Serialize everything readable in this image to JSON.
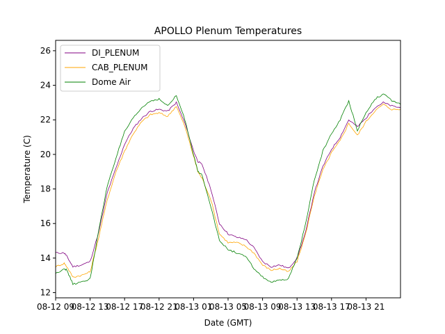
{
  "chart_data": {
    "type": "line",
    "title": "APOLLO Plenum Temperatures",
    "xlabel": "Date (GMT)",
    "ylabel": "Temperature (C)",
    "xlim": [
      0,
      40
    ],
    "ylim": [
      11.7,
      26.6
    ],
    "x_ticks": [
      {
        "x": 0,
        "label": "08-12 09"
      },
      {
        "x": 4,
        "label": "08-12 13"
      },
      {
        "x": 8,
        "label": "08-12 17"
      },
      {
        "x": 12,
        "label": "08-12 21"
      },
      {
        "x": 16,
        "label": "08-13 01"
      },
      {
        "x": 20,
        "label": "08-13 05"
      },
      {
        "x": 24,
        "label": "08-13 09"
      },
      {
        "x": 28,
        "label": "08-13 13"
      },
      {
        "x": 32,
        "label": "08-13 17"
      },
      {
        "x": 36,
        "label": "08-13 21"
      }
    ],
    "y_ticks": [
      12,
      14,
      16,
      18,
      20,
      22,
      24,
      26
    ],
    "legend_position": "top-left",
    "series": [
      {
        "name": "DI_PLENUM",
        "color": "#800080",
        "x": [
          0,
          1,
          1.3,
          2,
          3,
          4,
          5,
          6,
          7,
          8,
          9,
          10,
          11,
          12,
          13,
          14,
          15,
          16,
          16.5,
          17,
          18,
          19,
          20,
          21,
          22,
          23,
          24,
          25,
          26,
          27,
          28,
          29,
          30,
          31,
          32,
          33,
          34,
          35,
          36,
          37,
          38,
          39,
          40
        ],
        "y": [
          14.3,
          14.3,
          14.1,
          13.5,
          13.6,
          13.8,
          15.5,
          17.8,
          19.2,
          20.6,
          21.5,
          22.1,
          22.5,
          22.6,
          22.5,
          23.0,
          21.8,
          20.2,
          19.6,
          19.4,
          18.0,
          16.0,
          15.4,
          15.2,
          15.1,
          14.6,
          13.8,
          13.5,
          13.6,
          13.4,
          14.0,
          15.5,
          17.8,
          19.3,
          20.3,
          21.0,
          22.0,
          21.6,
          22.1,
          22.7,
          23.0,
          22.8,
          22.7
        ]
      },
      {
        "name": "CAB_PLENUM",
        "color": "#FFA500",
        "x": [
          0,
          1,
          1.3,
          2,
          3,
          4,
          5,
          6,
          7,
          8,
          9,
          10,
          11,
          12,
          13,
          14,
          15,
          16,
          16.5,
          17,
          18,
          19,
          20,
          21,
          22,
          23,
          24,
          25,
          26,
          27,
          28,
          29,
          30,
          31,
          32,
          33,
          34,
          35,
          36,
          37,
          38,
          39,
          40
        ],
        "y": [
          13.5,
          13.7,
          13.5,
          12.9,
          13.0,
          13.2,
          15.2,
          17.4,
          19.0,
          20.2,
          21.2,
          21.9,
          22.3,
          22.4,
          22.2,
          22.8,
          21.6,
          19.9,
          19.0,
          18.6,
          17.4,
          15.4,
          14.9,
          14.9,
          14.7,
          14.3,
          13.6,
          13.3,
          13.4,
          13.2,
          13.8,
          15.4,
          17.6,
          19.1,
          20.1,
          20.8,
          21.8,
          21.1,
          21.9,
          22.5,
          22.9,
          22.6,
          22.6
        ]
      },
      {
        "name": "Dome Air",
        "color": "#008000",
        "x": [
          0,
          1,
          1.3,
          2,
          3,
          4,
          5,
          6,
          7,
          8,
          9,
          10,
          11,
          12,
          13,
          14,
          15,
          16,
          16.5,
          17,
          18,
          19,
          20,
          21,
          22,
          23,
          24,
          25,
          26,
          27,
          28,
          29,
          30,
          31,
          32,
          33,
          34,
          35,
          36,
          37,
          38,
          39,
          40
        ],
        "y": [
          13.1,
          13.4,
          13.3,
          12.5,
          12.6,
          12.8,
          15.6,
          18.2,
          19.8,
          21.3,
          22.1,
          22.7,
          23.1,
          23.2,
          22.8,
          23.4,
          22.0,
          20.0,
          19.0,
          18.8,
          17.0,
          15.0,
          14.5,
          14.3,
          14.1,
          13.4,
          12.9,
          12.6,
          12.7,
          12.8,
          14.0,
          16.0,
          18.5,
          20.2,
          21.2,
          22.0,
          23.1,
          21.4,
          22.4,
          23.2,
          23.5,
          23.1,
          22.9
        ]
      }
    ]
  }
}
